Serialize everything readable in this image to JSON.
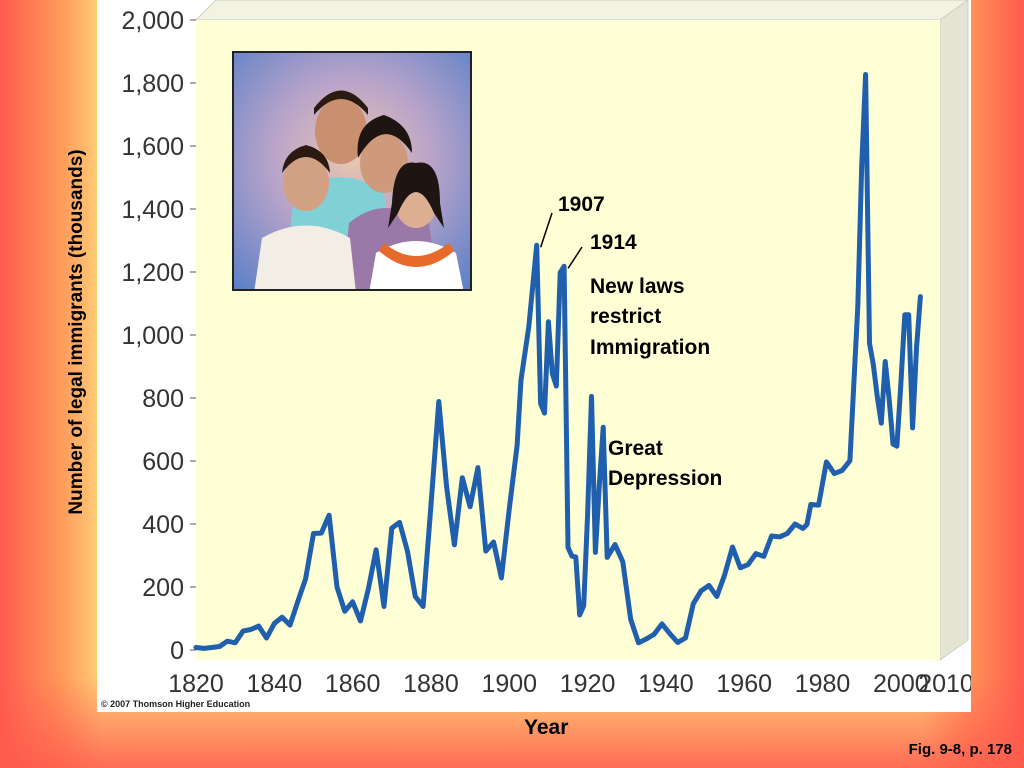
{
  "chart_data": {
    "type": "line",
    "title": "",
    "xlabel": "Year",
    "ylabel": "Number of legal immigrants (thousands)",
    "xlim": [
      1820,
      2010
    ],
    "ylim": [
      0,
      2000
    ],
    "x_ticks": [
      "1820",
      "1840",
      "1860",
      "1880",
      "1900",
      "1920",
      "1940",
      "1960",
      "1980",
      "2000",
      "2010"
    ],
    "y_ticks": [
      "0",
      "200",
      "400",
      "600",
      "800",
      "1,000",
      "1,200",
      "1,400",
      "1,600",
      "1,800",
      "2,000"
    ],
    "grid": false,
    "line_color": "#1f5fae",
    "plot_background": "#ffffd6",
    "series": [
      {
        "x": [
          1820,
          1822,
          1824,
          1826,
          1828,
          1830,
          1832,
          1834,
          1836,
          1838,
          1840,
          1842,
          1844,
          1846,
          1848,
          1850,
          1852,
          1854,
          1856,
          1858,
          1860,
          1862,
          1864,
          1866,
          1868,
          1870,
          1872,
          1874,
          1876,
          1878,
          1880,
          1882,
          1884,
          1886,
          1888,
          1890,
          1892,
          1894,
          1896,
          1898,
          1900,
          1902,
          1903,
          1905,
          1907,
          1908,
          1909,
          1910,
          1911,
          1912,
          1913,
          1914,
          1915,
          1916,
          1917,
          1918,
          1919,
          1920,
          1921,
          1922,
          1923,
          1924,
          1925,
          1927,
          1929,
          1931,
          1933,
          1935,
          1937,
          1939,
          1941,
          1943,
          1945,
          1947,
          1949,
          1951,
          1953,
          1955,
          1957,
          1959,
          1961,
          1963,
          1965,
          1967,
          1969,
          1971,
          1973,
          1975,
          1976,
          1977,
          1979,
          1981,
          1983,
          1985,
          1987,
          1989,
          1990,
          1991,
          1992,
          1993,
          1994,
          1995,
          1996,
          1997,
          1998,
          1999,
          2000,
          2001,
          2002,
          2003,
          2004,
          2005
        ],
        "values": [
          8,
          5,
          8,
          11,
          28,
          23,
          60,
          65,
          76,
          38,
          84,
          104,
          79,
          154,
          226,
          370,
          371,
          428,
          200,
          123,
          153,
          92,
          193,
          318,
          138,
          387,
          405,
          313,
          170,
          138,
          457,
          789,
          518,
          334,
          547,
          455,
          579,
          314,
          343,
          229,
          449,
          649,
          857,
          1026,
          1285,
          782,
          752,
          1042,
          878,
          838,
          1198,
          1218,
          326,
          298,
          295,
          111,
          141,
          430,
          805,
          310,
          523,
          707,
          294,
          335,
          280,
          97,
          23,
          35,
          50,
          83,
          52,
          24,
          38,
          147,
          188,
          205,
          170,
          238,
          327,
          261,
          271,
          306,
          297,
          362,
          359,
          370,
          400,
          386,
          398,
          462,
          460,
          597,
          560,
          570,
          601,
          1091,
          1536,
          1827,
          974,
          904,
          804,
          720,
          916,
          798,
          654,
          647,
          842,
          1064,
          1064,
          705,
          958,
          1122
        ]
      }
    ],
    "annotations": {
      "y1907": "1907",
      "y1914": "1914",
      "laws_1": "New laws",
      "laws_2": "restrict",
      "laws_3": "Immigration",
      "gd_1": "Great",
      "gd_2": "Depression"
    }
  },
  "footer": {
    "copyright": "© 2007 Thomson Higher Education",
    "figure_ref": "Fig. 9-8, p. 178"
  },
  "photo": {
    "description_icon": "family-photo-icon"
  }
}
